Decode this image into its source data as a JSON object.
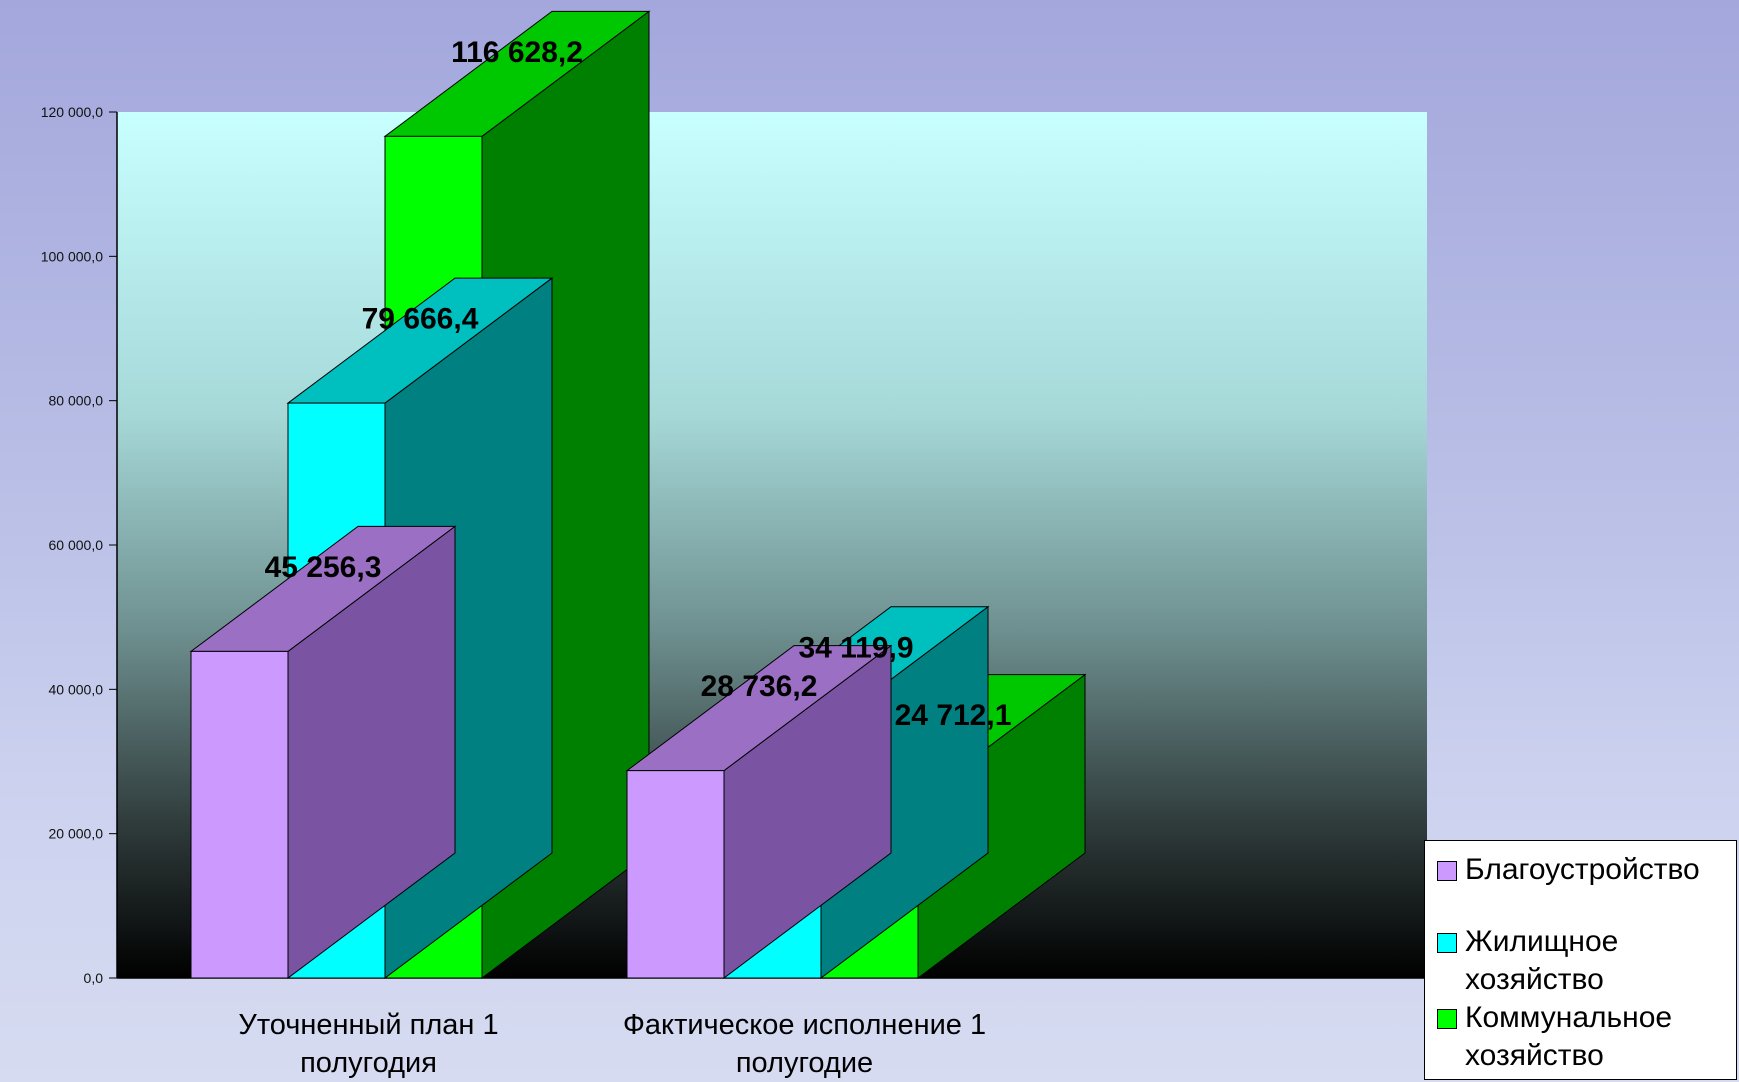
{
  "chart_data": {
    "type": "bar",
    "categories": [
      "Уточненный план 1 полугодия",
      "Фактическое исполнение 1 полугодие"
    ],
    "series": [
      {
        "name": "Благоустройство",
        "values": [
          45256.3,
          28736.2
        ],
        "labels": [
          "45 256,3",
          "28 736,2"
        ],
        "color": "#cc99ff",
        "top_color": "#9b6fc4",
        "side_color": "#7a54a3"
      },
      {
        "name": "Жилищное хозяйство",
        "values": [
          79666.4,
          34119.9
        ],
        "labels": [
          "79 666,4",
          "34 119,9"
        ],
        "color": "#00ffff",
        "top_color": "#00bfbf",
        "side_color": "#008080"
      },
      {
        "name": "Коммунальное хозяйство",
        "values": [
          116628.2,
          24712.1
        ],
        "labels": [
          "116 628,2",
          "24 712,1"
        ],
        "color": "#00ff00",
        "top_color": "#00c800",
        "side_color": "#008000"
      }
    ],
    "ylim": [
      0,
      120000
    ],
    "yticks": [
      0,
      20000,
      40000,
      60000,
      80000,
      100000,
      120000
    ],
    "ytick_labels": [
      "0,0",
      "20 000,0",
      "40 000,0",
      "60 000,0",
      "80 000,0",
      "100 000,0",
      "120 000,0"
    ],
    "legend_position": "bottom-right",
    "grid": false,
    "plot_background": "gradient light cyan to black"
  }
}
